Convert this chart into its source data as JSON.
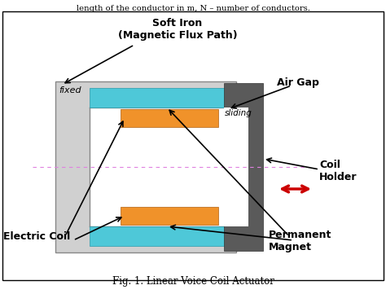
{
  "fig_width": 4.74,
  "fig_height": 3.61,
  "dpi": 100,
  "bg_color": "#ffffff",
  "title_text": "Fig. 1. Linear Voice Coil Actuator",
  "soft_iron_color": "#d0d0d0",
  "soft_iron_border": "#888888",
  "coil_holder_color": "#5a5a5a",
  "cyan_color": "#4ec8d8",
  "orange_color": "#f0922a",
  "arrow_color": "#cc0000",
  "dashed_line_color": "#e080e0",
  "fixed_label": "fixed",
  "sliding_label": "sliding",
  "header_text": "length of the conductor in m, N – number of conductors.",
  "labels": {
    "soft_iron": "Soft Iron\n(Magnetic Flux Path)",
    "air_gap": "Air Gap",
    "coil_holder": "Coil\nHolder",
    "electric_coil": "Electric Coil",
    "permanent_magnet": "Permanent\nMagnet"
  }
}
